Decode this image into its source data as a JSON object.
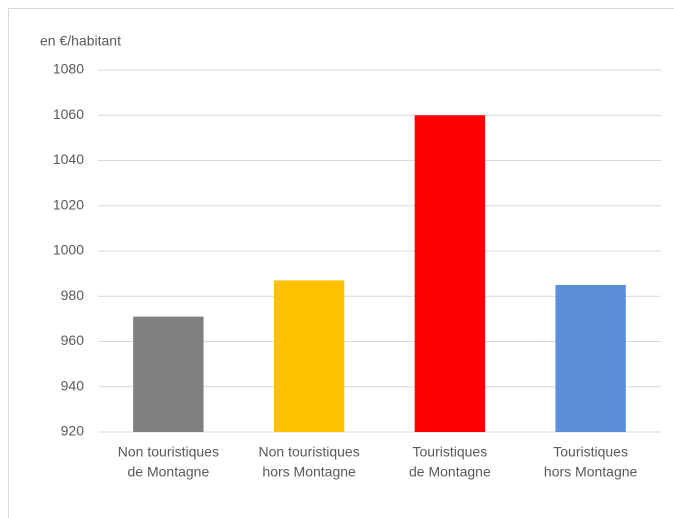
{
  "chart_data": {
    "type": "bar",
    "y_label": "en €/habitant",
    "categories": [
      [
        "Non touristiques",
        "de Montagne"
      ],
      [
        "Non touristiques",
        "hors Montagne"
      ],
      [
        "Touristiques",
        "de Montagne"
      ],
      [
        "Touristiques",
        "hors Montagne"
      ]
    ],
    "values": [
      971,
      987,
      1060,
      985
    ],
    "colors": [
      "#7f7f7f",
      "#ffc000",
      "#ff0000",
      "#5b8fd6"
    ],
    "ylim": [
      920,
      1080
    ],
    "yticks": [
      920,
      940,
      960,
      980,
      1000,
      1020,
      1040,
      1060,
      1080
    ],
    "grid": true
  }
}
